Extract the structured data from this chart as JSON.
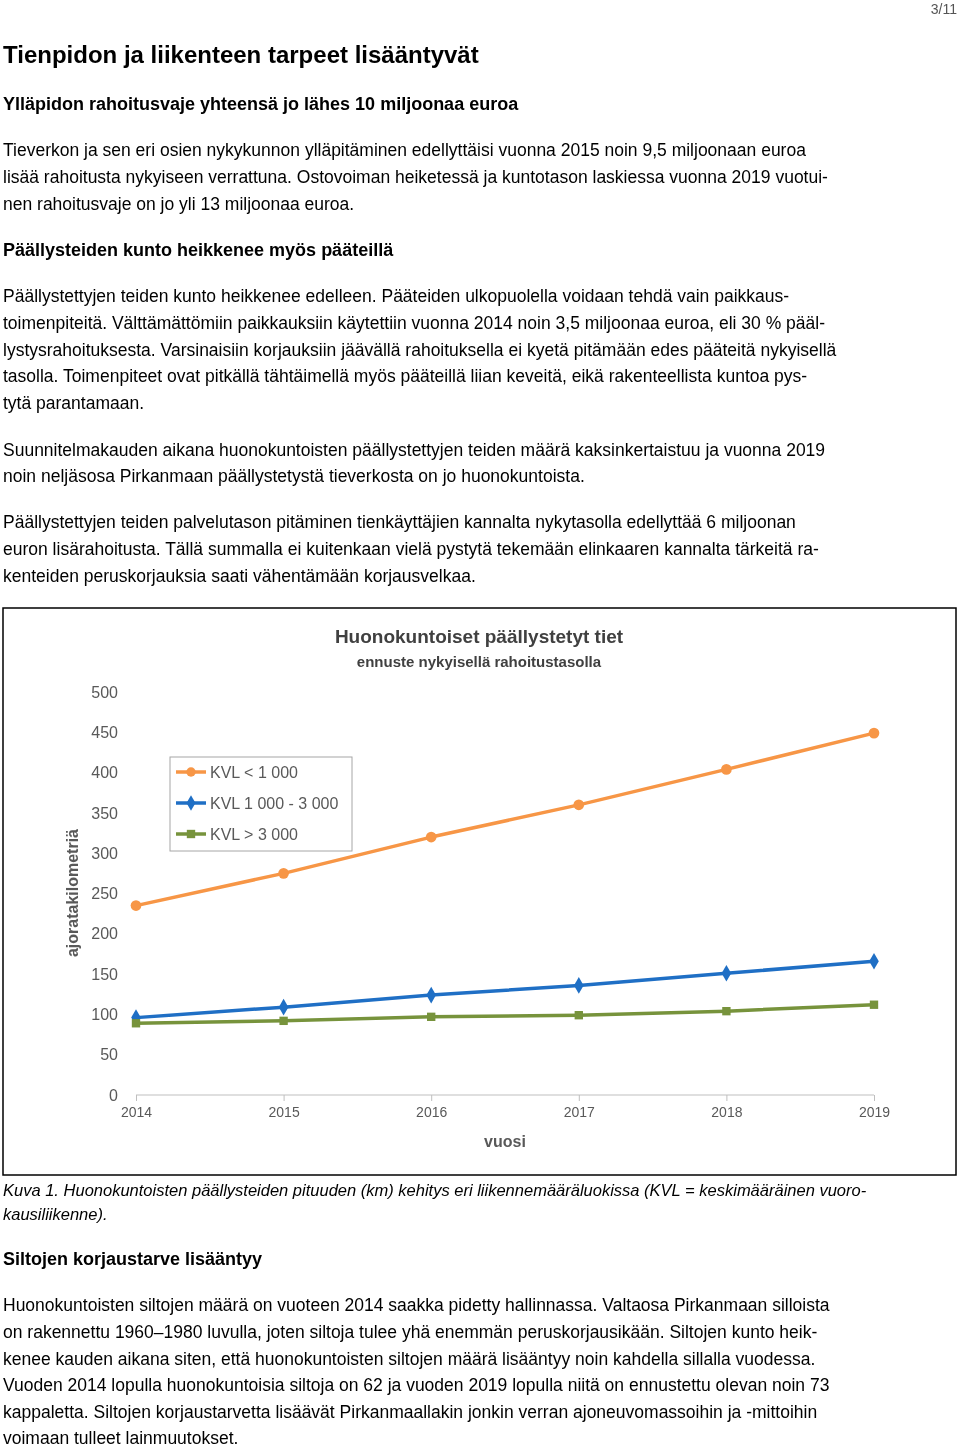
{
  "chart_data": {
    "type": "line",
    "title": "Huonokuntoiset päällystetyt tiet",
    "subtitle": "ennuste nykyisellä rahoitustasolla",
    "xlabel": "vuosi",
    "ylabel": "ajoratakilometriä",
    "x": [
      2014,
      2015,
      2016,
      2017,
      2018,
      2019
    ],
    "xlim": [
      2014,
      2019
    ],
    "xticks": [
      2014,
      2015,
      2016,
      2017,
      2018,
      2019
    ],
    "ylim": [
      0,
      500
    ],
    "yticks": [
      0,
      50,
      100,
      150,
      200,
      250,
      300,
      350,
      400,
      450,
      500
    ],
    "grid": false,
    "legend": "top left",
    "series": [
      {
        "name": "KVL < 1 000",
        "color": "#f79646",
        "marker": "circle",
        "values": [
          235,
          275,
          320,
          360,
          404,
          449
        ]
      },
      {
        "name": "KVL 1 000 - 3 000",
        "color": "#1f6fc5",
        "marker": "diamond",
        "values": [
          96,
          109,
          124,
          136,
          151,
          166
        ]
      },
      {
        "name": "KVL > 3 000",
        "color": "#77933c",
        "marker": "square",
        "values": [
          89,
          92,
          97,
          99,
          104,
          112
        ]
      }
    ],
    "annotations": [
      "3/11",
      "Tienpidon ja liikenteen tarpeet lisääntyvät",
      "Ylläpidon rahoitusvaje yhteensä jo lähes 10 miljoonaa euroa",
      "Tieverkon ja sen eri osien nykykunnon ylläpitäminen edellyttäisi vuonna 2015 noin 9,5 miljoonaan euroa",
      "lisää rahoitusta nykyiseen verrattuna. Ostovoiman heiketessä ja kuntotason laskiessa vuonna 2019 vuotui-",
      "nen rahoitusvaje on jo yli 13 miljoonaa euroa.",
      "Päällysteiden kunto heikkenee myös pääteillä",
      "Päällystettyjen teiden kunto heikkenee edelleen. Pääteiden ulkopuolella voidaan tehdä vain paikkaus-",
      "toimenpiteitä. Välttämättömiin paikkauksiin käytettiin vuonna 2014 noin 3,5 miljoonaa euroa, eli 30 % pääl-",
      "lystysrahoituksesta. Varsinaisiin korjauksiin jäävällä rahoituksella ei kyetä pitämään edes pääteitä nykyisellä",
      "tasolla. Toimenpiteet ovat pitkällä tähtäimellä myös pääteillä liian keveitä, eikä rakenteellista kuntoa pys-",
      "tytä parantamaan.",
      "Suunnitelmakauden aikana huonokuntoisten päällystettyjen teiden määrä kaksinkertaistuu ja vuonna 2019",
      "noin neljäsosa Pirkanmaan päällystetystä tieverkosta on jo huonokuntoista.",
      "Päällystettyjen teiden palvelutason pitäminen tienkäyttäjien kannalta nykytasolla edellyttää 6 miljoonan",
      "euron lisärahoitusta. Tällä summalla ei kuitenkaan vielä pystytä tekemään elinkaaren kannalta tärkeitä ra-",
      "kenteiden peruskorjauksia saati vähentämään korjausvelkaa.",
      "Kuva 1. Huonokuntoisten päällysteiden pituuden (km) kehitys eri liikennemääräluokissa (KVL = keskimääräinen vuoro-",
      "kausiliikenne).",
      "Siltojen korjaustarve lisääntyy",
      "Huonokuntoisten siltojen määrä on vuoteen 2014 saakka pidetty hallinnassa. Valtaosa Pirkanmaan silloista",
      "on rakennettu 1960–1980 luvulla, joten siltoja tulee yhä enemmän peruskorjausikään. Siltojen kunto heik-",
      "kenee kauden aikana siten, että huonokuntoisten siltojen määrä lisääntyy noin kahdella sillalla vuodessa.",
      "Vuoden 2014 lopulla huonokuntoisia siltoja on 62 ja vuoden 2019 lopulla niitä on ennustettu olevan noin 73",
      "kappaletta. Siltojen korjaustarvetta lisäävät Pirkanmaallakin jonkin verran ajoneuvomassoihin ja -mittoihin",
      "voimaan tulleet lainmuutokset."
    ]
  }
}
